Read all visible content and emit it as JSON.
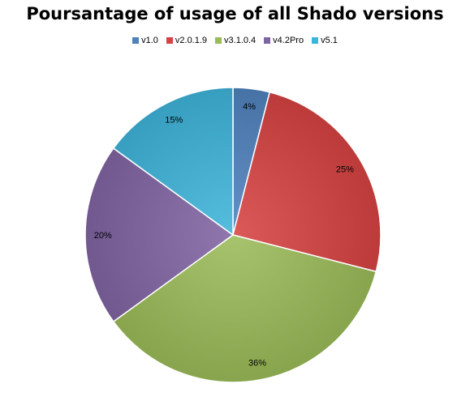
{
  "chart_data": {
    "type": "pie",
    "title": "Poursantage of usage of all Shado versions",
    "legend_position": "top",
    "categories": [
      "v1.0",
      "v2.0.1.9",
      "v3.1.0.4",
      "v4.2Pro",
      "v5.1"
    ],
    "values": [
      4,
      25,
      36,
      20,
      15
    ],
    "labels": [
      "4%",
      "25%",
      "36%",
      "20%",
      "15%"
    ],
    "colors": [
      "#4F81BD",
      "#D64342",
      "#9BBB59",
      "#8064A2",
      "#3EB4DA"
    ]
  }
}
